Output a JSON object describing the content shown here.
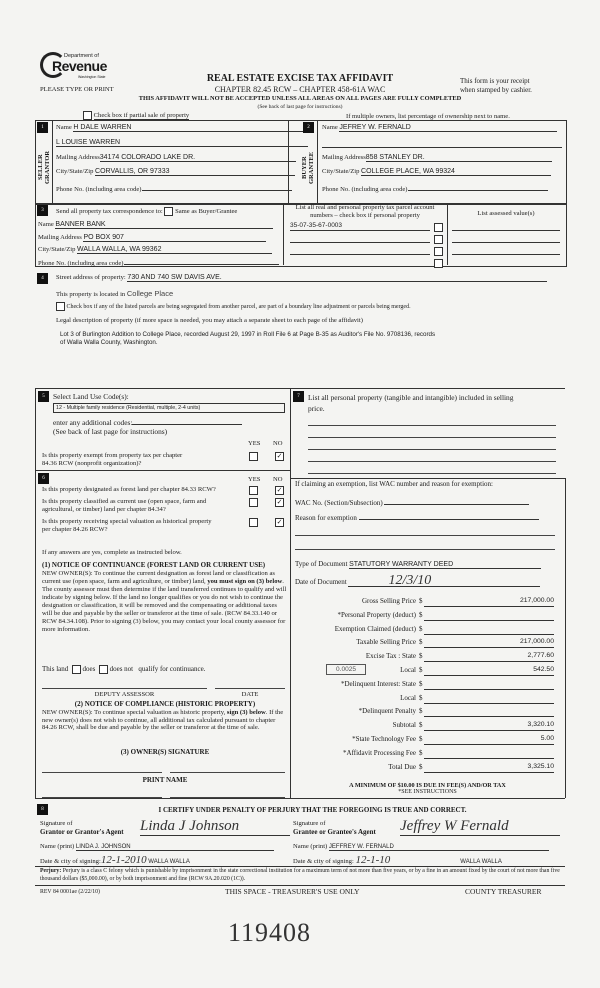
{
  "header": {
    "dept_of": "Department of",
    "revenue": "Revenue",
    "washington_state": "Washington State",
    "please_type": "PLEASE TYPE OR PRINT",
    "title": "REAL ESTATE EXCISE TAX AFFIDAVIT",
    "chapter": "CHAPTER 82.45 RCW – CHAPTER 458-61A WAC",
    "warning": "THIS AFFIDAVIT WILL NOT BE ACCEPTED UNLESS ALL AREAS ON ALL PAGES ARE FULLY COMPLETED",
    "see_back": "(See back of last page for instructions)",
    "receipt_line1": "This form is your receipt",
    "receipt_line2": "when stamped by cashier.",
    "partial_sale_label": "Check box if partial sale of property",
    "multiple_owners_note": "If multiple owners, list percentage of ownership next to name."
  },
  "seller": {
    "number": "1",
    "side_label": "SELLER GRANTOR",
    "name_label": "Name",
    "name1": "H DALE WARREN",
    "name2": "L LOUISE WARREN",
    "mailing_label": "Mailing Address",
    "mailing": "34174 COLORADO LAKE DR.",
    "city_label": "City/State/Zip",
    "city": "CORVALLIS, OR  97333",
    "phone_label": "Phone No. (including area code)"
  },
  "buyer": {
    "number": "2",
    "side_label": "BUYER GRANTEE",
    "name_label": "Name",
    "name1": "JEFREY W. FERNALD",
    "mailing_label": "Mailing Address",
    "mailing": "858 STANLEY DR.",
    "city_label": "City/State/Zip",
    "city": "COLLEGE PLACE, WA  99324",
    "phone_label": "Phone No. (including area code)"
  },
  "section3": {
    "number": "3",
    "send_label": "Send all property tax correspondence to:",
    "same_as_label": "Same as Buyer/Grantee",
    "name_label": "Name",
    "name": "BANNER BANK",
    "mailing_label": "Mailing Address",
    "mailing": "PO BOX 907",
    "city_label": "City/State/Zip",
    "city": "WALLA WALLA, WA  99362",
    "phone_label": "Phone No. (including area code)",
    "parcel_header1": "List all real and personal property tax parcel account",
    "parcel_header2": "numbers – check box if personal property",
    "parcels": [
      "35-07-35-67-0003",
      "",
      "",
      ""
    ],
    "assessed_header": "List assessed value(s)"
  },
  "section4": {
    "number": "4",
    "street_label": "Street address of property:",
    "street": "730 AND 740 SW DAVIS AVE.",
    "located_label": "This property is located in",
    "located": "College Place",
    "segregated_label": "Check box if any of the listed parcels are being segregated from another parcel, are part of a boundary line adjustment or parcels being merged.",
    "legal_label": "Legal description of property (if more space is needed, you may attach a separate sheet to each page of the affidavit)",
    "legal_line1": "Lot 3 of Burlington Addition to College Place, recorded August 29, 1997 in Roll File 6 at Page B-35 as Auditor's File No. 9708136, records",
    "legal_line2": "of Walla Walla County, Washington."
  },
  "section5": {
    "number": "5",
    "title": "Select Land Use Code(s):",
    "code": "12 - Multiple family residence (Residential, multiple, 2-4 units)",
    "additional_label": "enter any additional codes:",
    "see_back": "(See back of last page for instructions)",
    "yes": "YES",
    "no": "NO",
    "exempt_q1": "Is this property exempt from property tax per chapter",
    "exempt_q2": "84.36 RCW (nonprofit organization)?",
    "exempt_answer": "NO"
  },
  "section6": {
    "number": "6",
    "yes": "YES",
    "no": "NO",
    "questions": [
      {
        "line1": "Is this property designated as forest land per chapter 84.33 RCW?",
        "line2": "",
        "answer": "NO"
      },
      {
        "line1": "Is this property classified as current use (open space, farm and",
        "line2": "agricultural, or timber) land per chapter 84.34?",
        "answer": "NO"
      },
      {
        "line1": "Is this property receiving special valuation as historical property",
        "line2": "per chapter 84.26 RCW?",
        "answer": "NO"
      }
    ],
    "if_yes": "If any answers are yes, complete as instructed below.",
    "notice1_title": "(1) NOTICE OF CONTINUANCE  (FOREST LAND OR CURRENT USE)",
    "notice1_pre": "NEW OWNER(S): To continue the current designation as forest land or classification as current use (open space, farm and agriculture, or timber) land, ",
    "notice1_bold": "you must sign on (3) below",
    "notice1_post": ". The county assessor must then determine if the land transferred continues to qualify and will indicate by signing below. If the land no longer qualifies or you do not wish to continue the designation or classification, it will be removed and the compensating or additional taxes will be due and payable by the seller or transferor at the time of sale. (RCW 84.33.140 or RCW 84.34.108). Prior to signing (3) below, you may contact your local county assessor for more information.",
    "this_land": "This land",
    "does": "does",
    "does_not": "does not",
    "qualify": "qualify for continuance.",
    "deputy_assessor": "DEPUTY ASSESSOR",
    "date": "DATE",
    "notice2_title": "(2) NOTICE OF COMPLIANCE (HISTORIC PROPERTY)",
    "notice2_pre": "NEW OWNER(S): To continue special valuation as historic property, ",
    "notice2_bold": "sign (3) below",
    "notice2_post": ". If the new owner(s) does not wish to continue, all additional tax calculated pursuant to chapter 84.26 RCW, shall be due and payable by the seller or transferor at the time of sale.",
    "owner_signature": "(3)  OWNER(S) SIGNATURE",
    "print_name": "PRINT NAME"
  },
  "section7": {
    "number": "7",
    "personal_property_label1": "List all  personal property (tangible and intangible) included in selling",
    "personal_property_label2": "price.",
    "exemption_label": "If claiming an exemption, list WAC number and reason for exemption:",
    "wac_label": "WAC No. (Section/Subsection)",
    "reason_label": "Reason for exemption",
    "doc_type_label": "Type of Document",
    "doc_type": "STATUTORY WARRANTY DEED",
    "doc_date_label": "Date of Document",
    "doc_date": "12/3/10",
    "local_rate": "0.0025",
    "fees": [
      {
        "label": "Gross Selling Price",
        "value": "217,000.00"
      },
      {
        "label": "*Personal Property (deduct)",
        "value": ""
      },
      {
        "label": "Exemption Claimed (deduct)",
        "value": ""
      },
      {
        "label": "Taxable Selling Price",
        "value": "217,000.00"
      },
      {
        "label": "Excise Tax : State",
        "value": "2,777.60"
      },
      {
        "label": "Local",
        "value": "542.50"
      },
      {
        "label": "*Delinquent Interest: State",
        "value": ""
      },
      {
        "label": "Local",
        "value": ""
      },
      {
        "label": "*Delinquent Penalty",
        "value": ""
      },
      {
        "label": "Subtotal",
        "value": "3,320.10"
      },
      {
        "label": "*State Technology Fee",
        "value": "5.00"
      },
      {
        "label": "*Affidavit Processing Fee",
        "value": ""
      },
      {
        "label": "Total Due",
        "value": "3,325.10"
      }
    ],
    "currency": "$",
    "minimum": "A MINIMUM OF $10.00 IS DUE IN FEE(S) AND/OR TAX",
    "see_instructions": "*SEE INSTRUCTIONS"
  },
  "section8": {
    "number": "8",
    "certify": "I CERTIFY UNDER PENALTY OF PERJURY THAT THE FOREGOING IS TRUE AND CORRECT.",
    "signature_of": "Signature of",
    "grantor_agent_label": "Grantor or Grantor's Agent",
    "grantor_signature": "Linda J Johnson",
    "grantee_agent_label": "Grantee or Grantee's Agent",
    "grantee_signature": "Jeffrey W Fernald",
    "name_print_label": "Name (print)",
    "grantor_name": "LINDA J. JOHNSON",
    "grantee_name": "JEFFREY W. FERNALD",
    "date_city_label": "Date & city of signing:",
    "grantor_date": "12-1-2010",
    "grantor_city": "WALLA WALLA",
    "grantee_date": "12-1-10",
    "grantee_city": "WALLA WALLA"
  },
  "perjury": {
    "label": "Perjury:",
    "text": " Perjury is a class C felony which is punishable by imprisonment in the state correctional institution for a maximum term of not more than five years, or by a fine in an amount fixed by the court of not more than five thousand dollars ($5,000.00), or by both imprisonment and fine (RCW 9A.20.020 (1C))."
  },
  "footer": {
    "form_number": "REV 84 0001ae (2/22/10)",
    "treasurer_use": "THIS SPACE - TREASURER'S USE ONLY",
    "county_treasurer": "COUNTY TREASURER"
  },
  "handwritten_number": "119408"
}
